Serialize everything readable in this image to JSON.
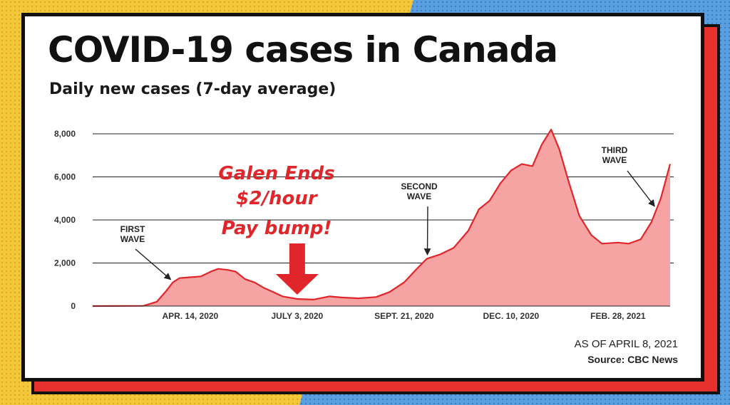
{
  "colors": {
    "background_left": "#f2c83a",
    "background_right": "#5a9fe0",
    "shadow": "#e5302c",
    "area_fill": "#f5a3a3",
    "line": "#e0262a",
    "callout": "#e0262a"
  },
  "callout": {
    "lines": [
      "Galen Ends",
      "$2/hour",
      "Pay bump!"
    ]
  },
  "footer": {
    "as_of": "AS OF APRIL 8, 2021",
    "source": "Source: CBC News"
  },
  "chart_data": {
    "type": "area",
    "title": "COVID-19 cases in Canada",
    "subtitle": "Daily new cases (7-day average)",
    "xlabel": "",
    "ylabel": "",
    "ylim": [
      0,
      8000
    ],
    "xlim": [
      "2020-02-01",
      "2021-04-08"
    ],
    "grid": true,
    "yticks": [
      {
        "value": 0,
        "label": "0"
      },
      {
        "value": 2000,
        "label": "2,000"
      },
      {
        "value": 4000,
        "label": "4,000"
      },
      {
        "value": 6000,
        "label": "6,000"
      },
      {
        "value": 8000,
        "label": "8,000"
      }
    ],
    "xticks": [
      {
        "date": "2020-04-14",
        "label": "APR. 14, 2020"
      },
      {
        "date": "2020-07-03",
        "label": "JULY 3, 2020"
      },
      {
        "date": "2020-09-21",
        "label": "SEPT. 21, 2020"
      },
      {
        "date": "2020-12-10",
        "label": "DEC. 10, 2020"
      },
      {
        "date": "2021-02-28",
        "label": "FEB. 28, 2021"
      }
    ],
    "series": [
      {
        "points": [
          [
            "2020-02-01",
            0
          ],
          [
            "2020-03-10",
            10
          ],
          [
            "2020-03-20",
            200
          ],
          [
            "2020-03-27",
            700
          ],
          [
            "2020-04-01",
            1100
          ],
          [
            "2020-04-06",
            1300
          ],
          [
            "2020-04-14",
            1340
          ],
          [
            "2020-04-22",
            1380
          ],
          [
            "2020-04-30",
            1620
          ],
          [
            "2020-05-05",
            1730
          ],
          [
            "2020-05-12",
            1680
          ],
          [
            "2020-05-18",
            1600
          ],
          [
            "2020-05-25",
            1250
          ],
          [
            "2020-06-01",
            1100
          ],
          [
            "2020-06-08",
            850
          ],
          [
            "2020-06-15",
            650
          ],
          [
            "2020-06-22",
            450
          ],
          [
            "2020-07-03",
            330
          ],
          [
            "2020-07-15",
            300
          ],
          [
            "2020-07-27",
            450
          ],
          [
            "2020-08-05",
            400
          ],
          [
            "2020-08-18",
            360
          ],
          [
            "2020-08-31",
            420
          ],
          [
            "2020-09-10",
            650
          ],
          [
            "2020-09-21",
            1100
          ],
          [
            "2020-09-30",
            1700
          ],
          [
            "2020-10-08",
            2200
          ],
          [
            "2020-10-18",
            2400
          ],
          [
            "2020-10-28",
            2700
          ],
          [
            "2020-11-08",
            3500
          ],
          [
            "2020-11-16",
            4500
          ],
          [
            "2020-11-24",
            4900
          ],
          [
            "2020-12-02",
            5700
          ],
          [
            "2020-12-10",
            6300
          ],
          [
            "2020-12-18",
            6600
          ],
          [
            "2020-12-26",
            6500
          ],
          [
            "2021-01-02",
            7500
          ],
          [
            "2021-01-09",
            8200
          ],
          [
            "2021-01-15",
            7300
          ],
          [
            "2021-01-22",
            5800
          ],
          [
            "2021-01-30",
            4200
          ],
          [
            "2021-02-08",
            3300
          ],
          [
            "2021-02-16",
            2900
          ],
          [
            "2021-02-28",
            2950
          ],
          [
            "2021-03-08",
            2900
          ],
          [
            "2021-03-17",
            3100
          ],
          [
            "2021-03-25",
            3900
          ],
          [
            "2021-04-01",
            5000
          ],
          [
            "2021-04-08",
            6600
          ]
        ]
      }
    ],
    "annotations": [
      {
        "lines": [
          "FIRST",
          "WAVE"
        ],
        "target": [
          "2020-04-01",
          1100
        ]
      },
      {
        "lines": [
          "SECOND",
          "WAVE"
        ],
        "target": [
          "2020-10-10",
          2250
        ]
      },
      {
        "lines": [
          "THIRD",
          "WAVE"
        ],
        "target": [
          "2021-03-29",
          4500
        ]
      }
    ],
    "callout_arrow_date": "2020-07-03"
  }
}
